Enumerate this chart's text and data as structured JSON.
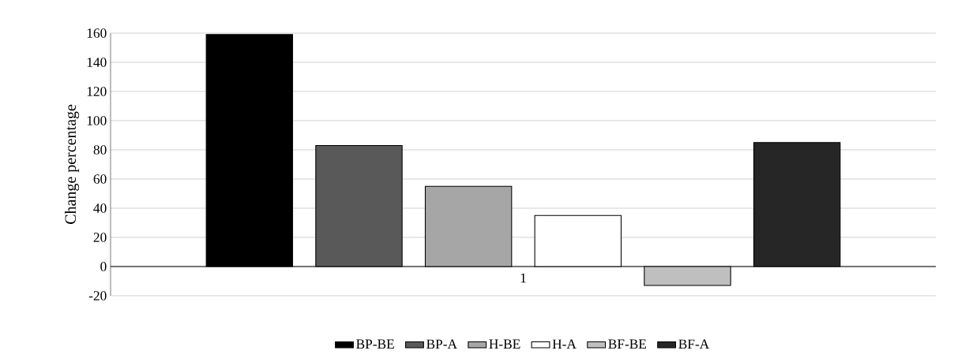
{
  "chart_data": {
    "type": "bar",
    "ylabel": "Change percentage",
    "categories": [
      "1"
    ],
    "series": [
      {
        "name": "BP-BE",
        "color": "#000000",
        "values": [
          159
        ]
      },
      {
        "name": "BP-A",
        "color": "#595959",
        "values": [
          83
        ]
      },
      {
        "name": "H-BE",
        "color": "#a6a6a6",
        "values": [
          55
        ]
      },
      {
        "name": "H-A",
        "color": "#ffffff",
        "values": [
          35
        ]
      },
      {
        "name": "BF-BE",
        "color": "#bfbfbf",
        "values": [
          -13
        ]
      },
      {
        "name": "BF-A",
        "color": "#262626",
        "values": [
          85
        ]
      }
    ],
    "ylim": [
      -20,
      160
    ],
    "yticks": [
      -20,
      0,
      20,
      40,
      60,
      80,
      100,
      120,
      140,
      160
    ],
    "grid": "y",
    "legend": "bottom"
  }
}
